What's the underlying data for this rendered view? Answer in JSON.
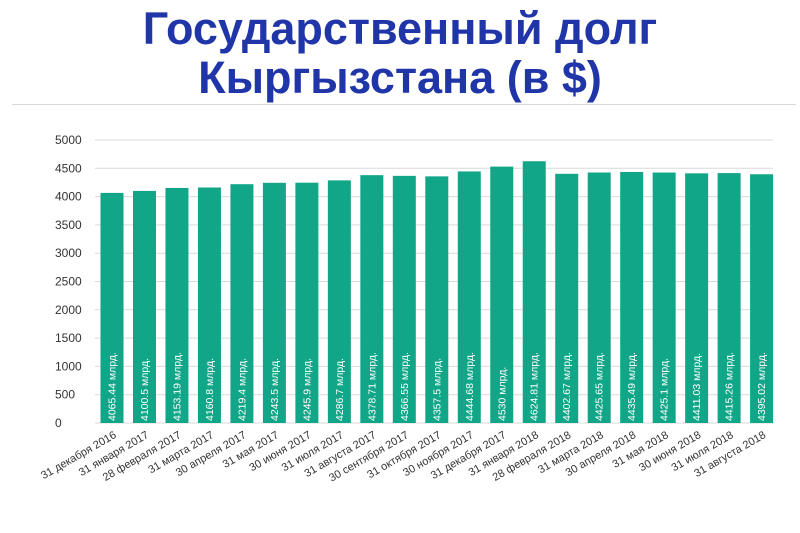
{
  "header": {
    "title_line1": "Государственный долг",
    "title_line2": "Кыргызстана (в $)"
  },
  "colors": {
    "bar": "#12a688",
    "title": "#1f35a8",
    "grid": "#d9d9d9"
  },
  "chart_data": {
    "type": "bar",
    "title": "Государственный долг Кыргызстана (в $)",
    "ylim": [
      0,
      5000
    ],
    "yticks": [
      0,
      500,
      1000,
      1500,
      2000,
      2500,
      3000,
      3500,
      4000,
      4500,
      5000
    ],
    "grid": true,
    "categories": [
      "31 декабря 2016",
      "31 января 2017",
      "28 февраля 2017",
      "31 марта 2017",
      "30 апреля 2017",
      "31 мая 2017",
      "30 июня 2017",
      "31 июля 2017",
      "31 августа 2017",
      "30 сентября 2017",
      "31 октября 2017",
      "30 ноября 2017",
      "31 декабря 2017",
      "31 января 2018",
      "28 февраля 2018",
      "31 марта 2018",
      "30 апреля 2018",
      "31 мая 2018",
      "30 июня 2018",
      "31 июля 2018",
      "31 августа 2018"
    ],
    "values": [
      4065.44,
      4100.5,
      4153.19,
      4160.8,
      4219.4,
      4243.5,
      4245.9,
      4286.7,
      4378.71,
      4366.55,
      4357.5,
      4444.68,
      4530,
      4624.81,
      4402.67,
      4425.65,
      4435.49,
      4425.1,
      4411.03,
      4415.26,
      4395.02
    ],
    "labels": [
      "4065.44 млрд.",
      "4100.5 млрд.",
      "4153.19 млрд.",
      "4160.8 млрд.",
      "4219.4 млрд.",
      "4243.5 млрд.",
      "4245.9 млрд.",
      "4286.7 млрд.",
      "4378.71 млрд.",
      "4366.55 млрд.",
      "4357.5 млрд.",
      "4444.68 млрд.",
      "4530 млрд.",
      "4624.81 млрд.",
      "4402.67 млрд.",
      "4425.65 млрд.",
      "4435.49 млрд.",
      "4425.1 млрд.",
      "4411.03 млрд.",
      "4415.26 млрд.",
      "4395.02 млрд."
    ]
  }
}
